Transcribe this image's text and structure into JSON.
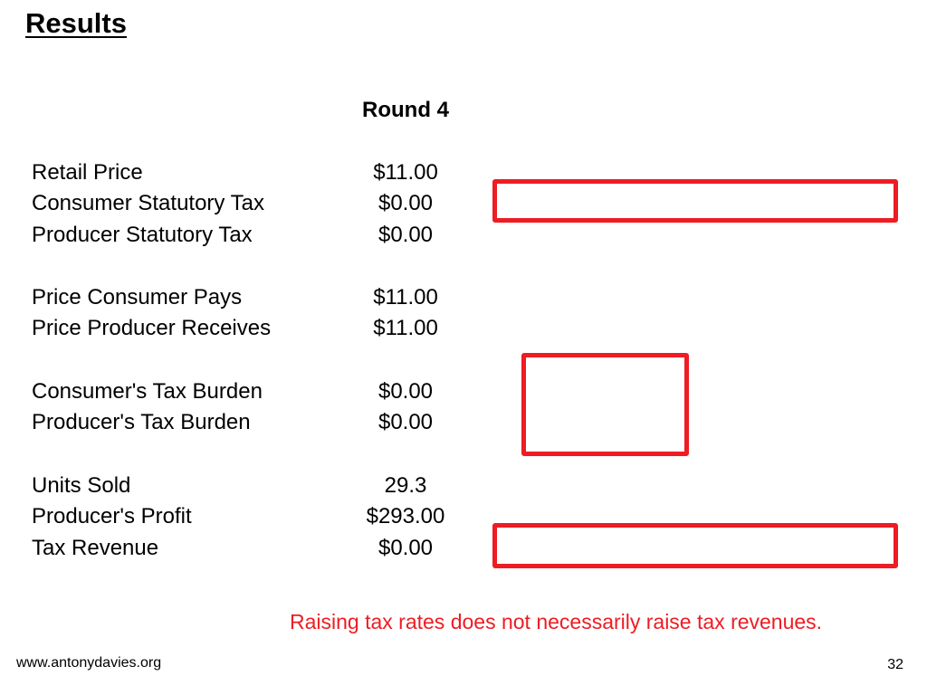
{
  "slide": {
    "title": "Results",
    "column_header": "Round 4",
    "rows": [
      {
        "label": "Retail Price",
        "value": "$11.00"
      },
      {
        "label": "Consumer Statutory Tax",
        "value": "$0.00"
      },
      {
        "label": "Producer Statutory Tax",
        "value": "$0.00"
      },
      {
        "label": "Price Consumer Pays",
        "value": "$11.00"
      },
      {
        "label": "Price Producer Receives",
        "value": "$11.00"
      },
      {
        "label": "Consumer's Tax Burden",
        "value": "$0.00"
      },
      {
        "label": "Producer's Tax Burden",
        "value": "$0.00"
      },
      {
        "label": "Units Sold",
        "value": "29.3"
      },
      {
        "label": "Producer's Profit",
        "value": "$293.00"
      },
      {
        "label": "Tax Revenue",
        "value": "$0.00"
      }
    ],
    "note": "Raising tax rates does not necessarily raise tax revenues.",
    "accent_color": "#ee1c23"
  },
  "footer": {
    "url": "www.antonydavies.org",
    "page_number": "32"
  }
}
